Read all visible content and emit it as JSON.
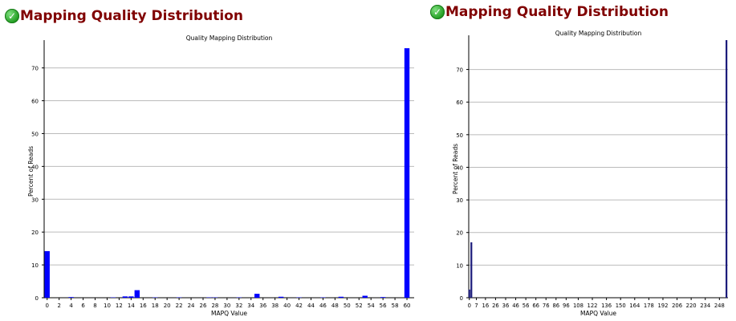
{
  "headings": [
    {
      "text": "Mapping Quality Distribution",
      "icon": "check-circle-icon",
      "color": "#800000"
    },
    {
      "text": "Mapping Quality Distribution",
      "icon": "check-circle-icon",
      "color": "#800000"
    }
  ],
  "colors": {
    "bar_left": "#0000ff",
    "bar_right": "#1a1a7a",
    "grid": "#bbbbbb"
  },
  "chart_data": [
    {
      "type": "bar",
      "title": "Quality Mapping Distribution",
      "xlabel": "MAPQ Value",
      "ylabel": "Percent of Reads",
      "ylim": [
        0,
        77
      ],
      "yticks": [
        0,
        10,
        20,
        30,
        40,
        50,
        60,
        70
      ],
      "xticks": [
        0,
        2,
        4,
        6,
        8,
        10,
        12,
        14,
        16,
        18,
        20,
        22,
        24,
        26,
        28,
        30,
        32,
        34,
        36,
        38,
        40,
        42,
        44,
        46,
        48,
        50,
        52,
        54,
        56,
        58,
        60
      ],
      "grid": true,
      "x": [
        0,
        4,
        11,
        13,
        14,
        15,
        18,
        22,
        27,
        28,
        32,
        35,
        39,
        42,
        46,
        49,
        53,
        56,
        60
      ],
      "values": [
        14.2,
        0.2,
        0.1,
        0.4,
        0.4,
        2.3,
        0.1,
        0.1,
        0.1,
        0.1,
        0.1,
        1.2,
        0.3,
        0.1,
        0.1,
        0.3,
        0.6,
        0.2,
        76.0
      ]
    },
    {
      "type": "bar",
      "title": "Quality Mapping Distribution",
      "xlabel": "MAPQ Value",
      "ylabel": "Percent of Reads",
      "ylim": [
        0,
        79
      ],
      "yticks": [
        0,
        10,
        20,
        30,
        40,
        50,
        60,
        70
      ],
      "xticks": [
        0,
        7,
        16,
        26,
        36,
        46,
        56,
        66,
        76,
        86,
        96,
        108,
        122,
        136,
        150,
        164,
        178,
        192,
        206,
        220,
        234,
        248
      ],
      "grid": true,
      "x": [
        0,
        2,
        255
      ],
      "values": [
        2.5,
        17.0,
        79.0
      ]
    }
  ]
}
